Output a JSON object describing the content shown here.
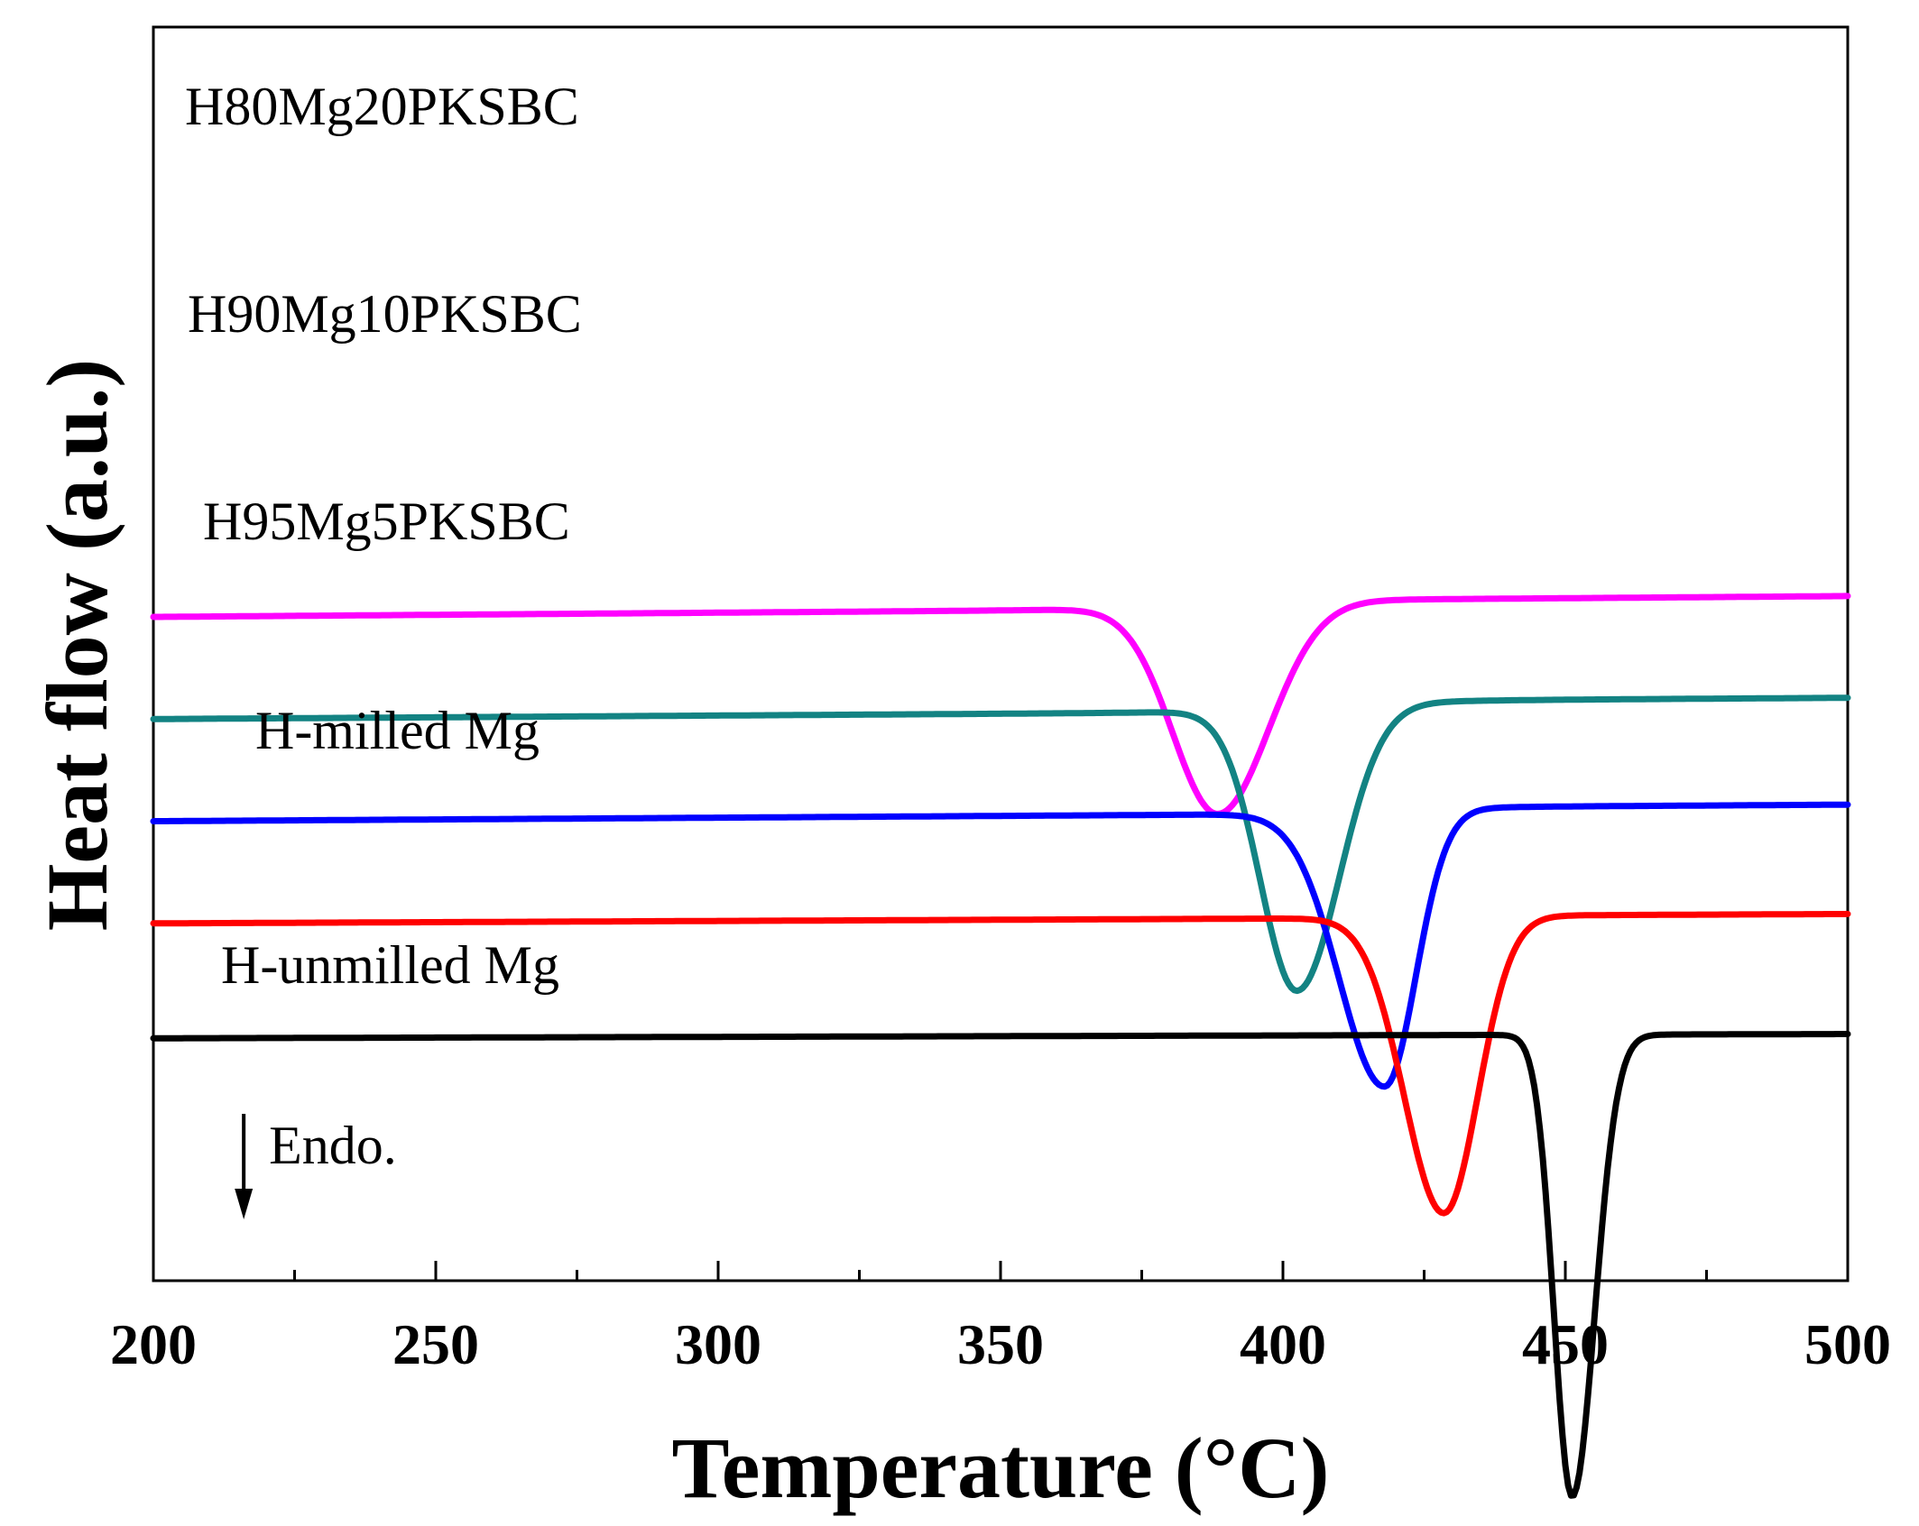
{
  "chart_data": {
    "type": "line",
    "title": "",
    "xlabel": "Temperature (°C)",
    "ylabel": "Heat flow (a.u.)",
    "xlim": [
      200,
      500
    ],
    "xticks": [
      200,
      250,
      300,
      350,
      400,
      450,
      500
    ],
    "x_minor_step": 25,
    "y_ticks_shown": false,
    "grid": false,
    "annotation": {
      "text": "Endo.",
      "arrow": "down",
      "x": 216
    },
    "series": [
      {
        "name": "H80Mg20PKSBC",
        "color": "#ff00ff",
        "baseline_start": 0.945,
        "baseline_end": 0.975,
        "peak_x": 388.5,
        "peak_depth": 0.99,
        "sigma_left": 8,
        "sigma_right": 9,
        "step": 0.019,
        "step_center": 382,
        "step_width": 8
      },
      {
        "name": "H90Mg10PKSBC",
        "color": "#138383",
        "baseline_start": 0.705,
        "baseline_end": 0.73,
        "peak_x": 402.5,
        "peak_depth": 1.33,
        "sigma_left": 6.5,
        "sigma_right": 7.5,
        "step": 0.025,
        "step_center": 407,
        "step_width": 10
      },
      {
        "name": "H95Mg5PKSBC",
        "color": "#0000ff",
        "baseline_start": 0.465,
        "baseline_end": 0.49,
        "peak_x": 418,
        "peak_depth": 1.29,
        "sigma_left": 8,
        "sigma_right": 5.5,
        "step": 0.014,
        "step_center": 425,
        "step_width": 6
      },
      {
        "name": "H-milled Mg",
        "color": "#ff0000",
        "baseline_start": 0.225,
        "baseline_end": 0.242,
        "peak_x": 428.5,
        "peak_depth": 1.39,
        "sigma_left": 7,
        "sigma_right": 6,
        "step": 0.005,
        "step_center": 435,
        "step_width": 6
      },
      {
        "name": "H-unmilled Mg",
        "color": "#000000",
        "baseline_start": -0.045,
        "baseline_end": -0.035,
        "peak_x": 451.2,
        "peak_depth": 2.17,
        "sigma_left": 3.2,
        "sigma_right": 4.0,
        "step": 0.0,
        "step_center": 455,
        "step_width": 4
      }
    ]
  }
}
